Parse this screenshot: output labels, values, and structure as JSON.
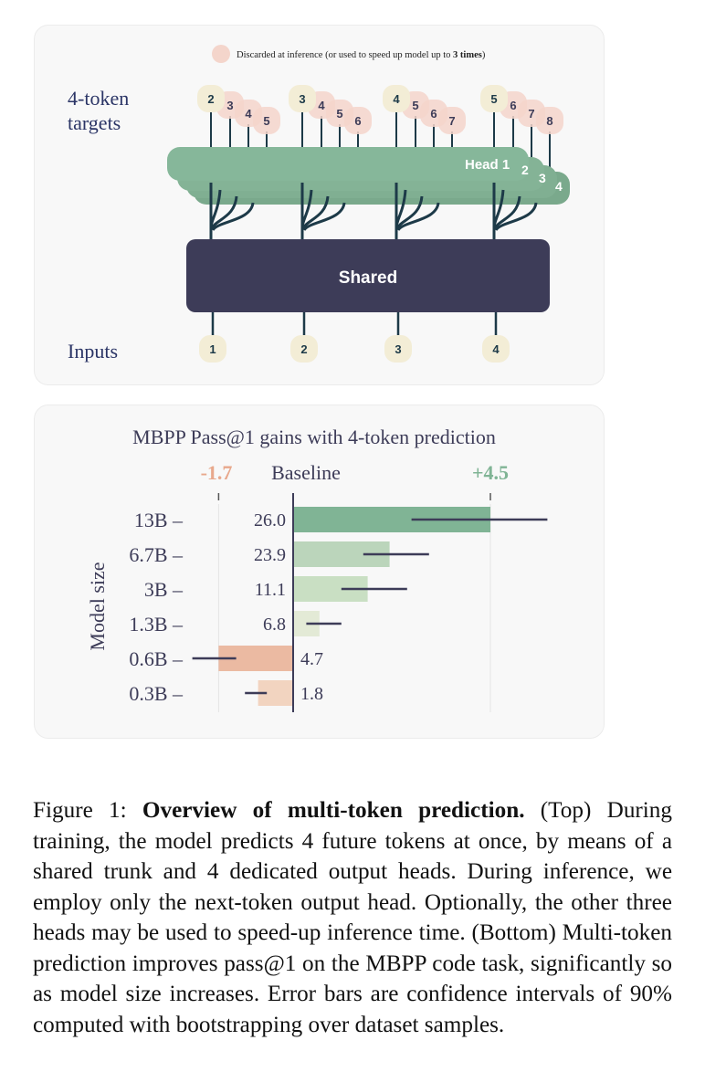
{
  "diagram": {
    "legend_text": "Discarded at inference (or used to speed up model up to ",
    "legend_bold": "3 times",
    "legend_close": ")",
    "targets_label_line1": "4-token",
    "targets_label_line2": "targets",
    "inputs_label": "Inputs",
    "shared_label": "Shared",
    "head_label": "Head 1",
    "head_numbers": [
      "2",
      "3",
      "4"
    ],
    "inputs": [
      "1",
      "2",
      "3",
      "4"
    ],
    "target_groups": [
      [
        "2",
        "3",
        "4",
        "5"
      ],
      [
        "3",
        "4",
        "5",
        "6"
      ],
      [
        "4",
        "5",
        "6",
        "7"
      ],
      [
        "5",
        "6",
        "7",
        "8"
      ]
    ],
    "colors": {
      "head": "#86b79a",
      "shared": "#3d3c58",
      "token_main": "#f3edd6",
      "token_discarded": "#f4d5cb",
      "wire": "#1d3a48"
    }
  },
  "chart_data": {
    "type": "bar",
    "title": "MBPP Pass@1  gains with 4-token prediction",
    "ylabel": "Model size",
    "baseline_label": "Baseline",
    "min_label": "-1.7",
    "max_label": "+4.5",
    "categories": [
      "13B",
      "6.7B",
      "3B",
      "1.3B",
      "0.6B",
      "0.3B"
    ],
    "values": [
      4.5,
      2.2,
      1.7,
      0.6,
      -1.7,
      -0.8
    ],
    "errors": [
      [
        2.7,
        5.8
      ],
      [
        1.6,
        3.1
      ],
      [
        1.1,
        2.6
      ],
      [
        0.3,
        1.1
      ],
      [
        -2.3,
        -1.3
      ],
      [
        -1.1,
        -0.6
      ]
    ],
    "value_labels": [
      "26.0",
      "23.9",
      "11.1",
      "6.8",
      "4.7",
      "1.8"
    ],
    "xlim": [
      -1.7,
      4.5
    ],
    "colors": [
      "#80b495",
      "#bbd5bb",
      "#c9dfc3",
      "#e3ead6",
      "#ebbaa2",
      "#f2d4c0"
    ]
  },
  "caption": {
    "figure_label": "Figure 1: ",
    "bold_title": "Overview of multi-token prediction.",
    "text": " (Top) During training, the model predicts 4 future tokens at once, by means of a shared trunk and 4 dedicated output heads. During inference, we employ only the next-token output head. Optionally, the other three heads may be used to speed-up inference time. (Bottom) Multi-token prediction improves pass@1 on the MBPP code task, significantly so as model size increases. Error bars are confidence intervals of 90% computed with bootstrapping over dataset samples."
  }
}
